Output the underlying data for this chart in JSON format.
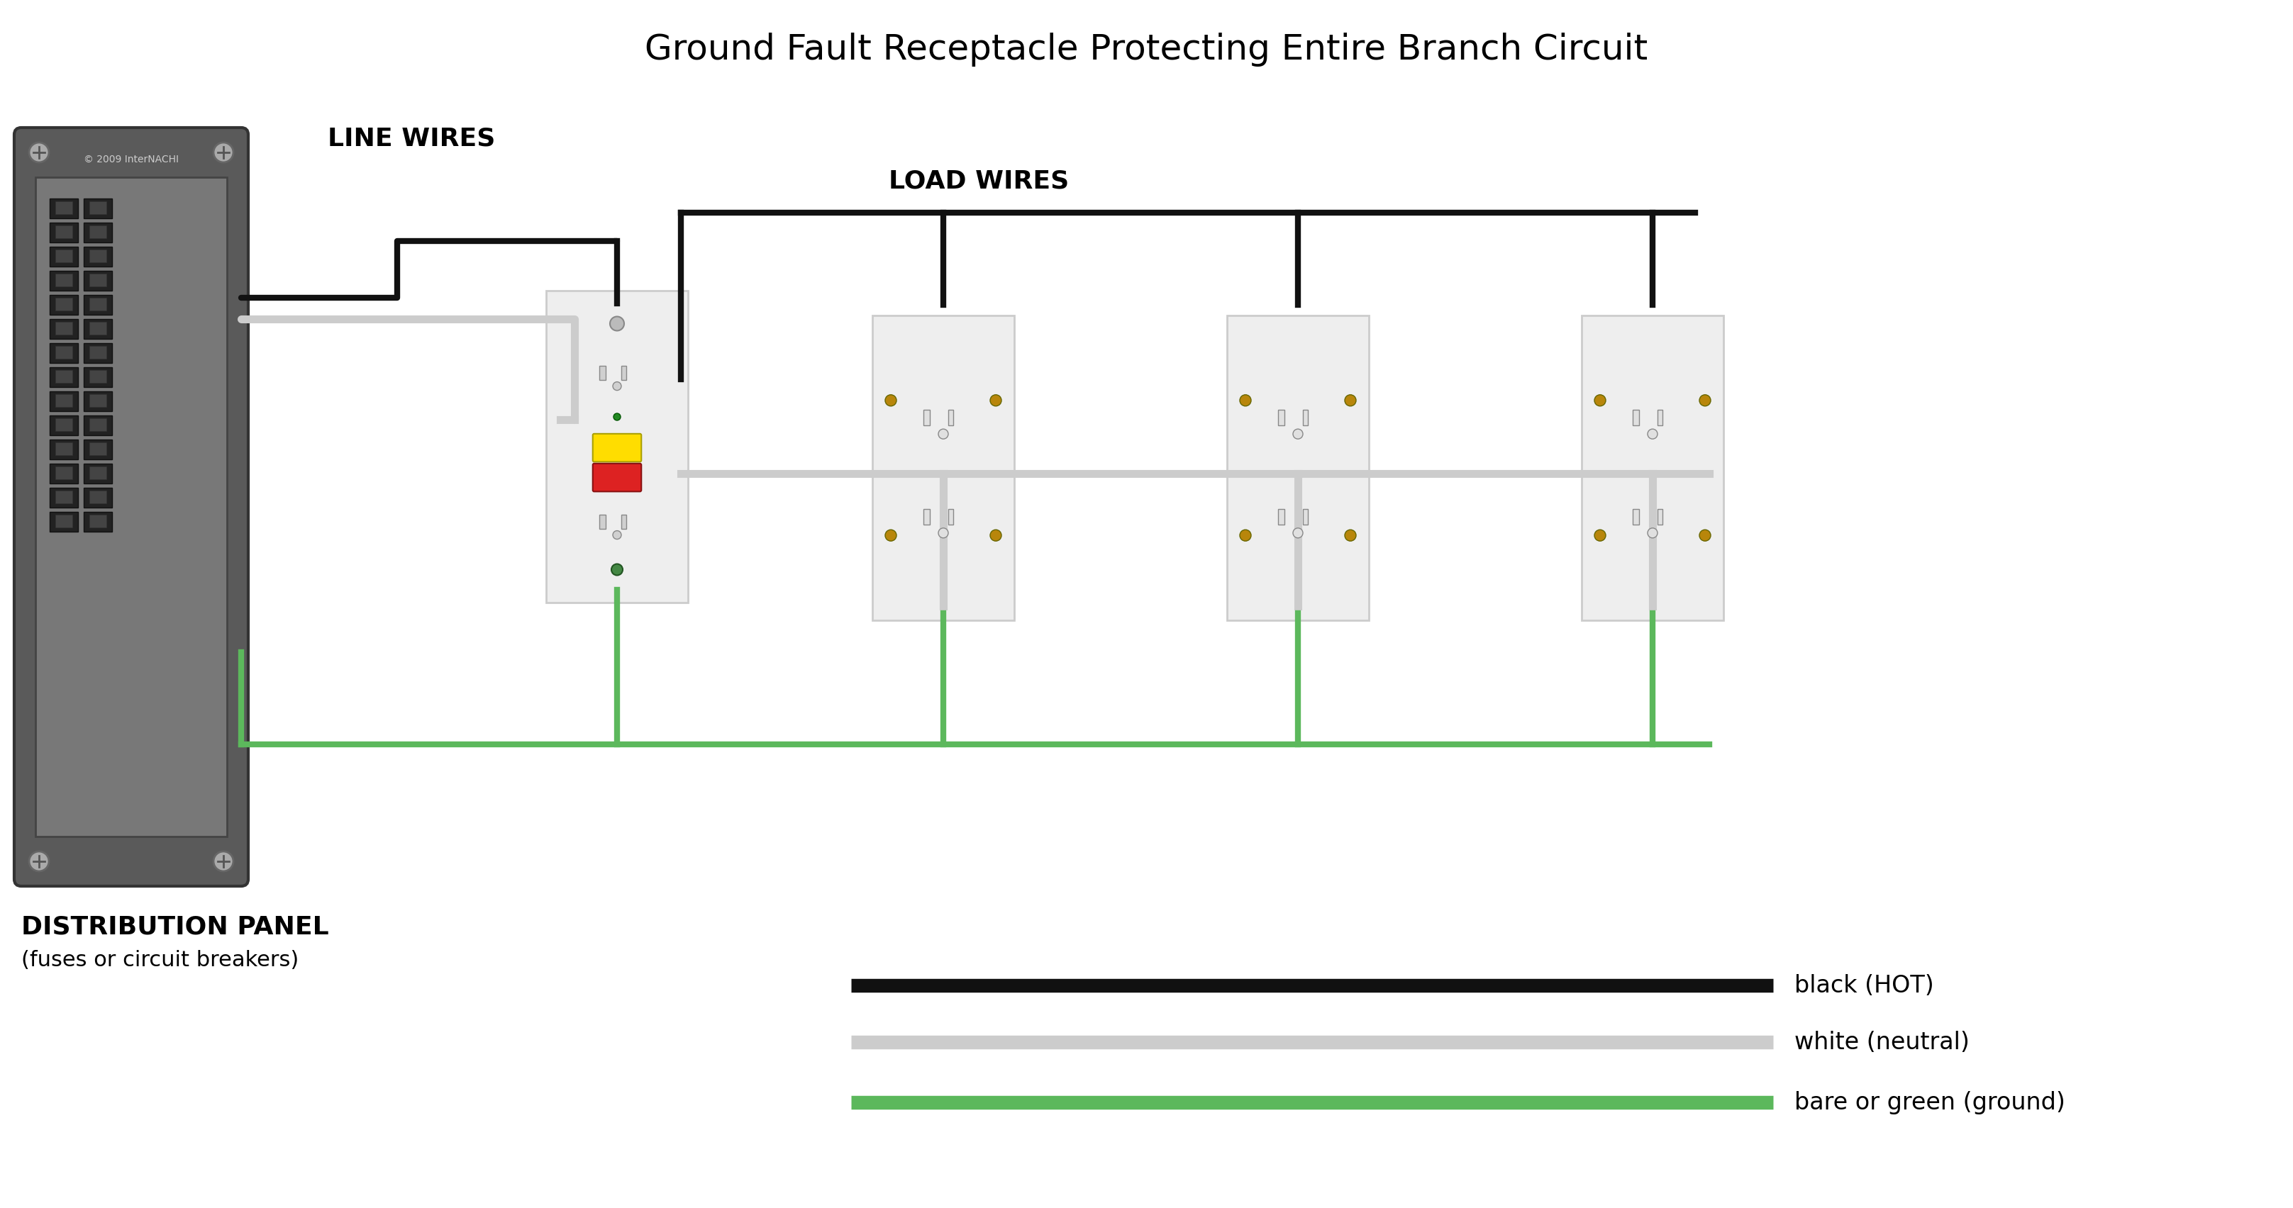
{
  "title": "Ground Fault Receptacle Protecting Entire Branch Circuit",
  "title_fontsize": 36,
  "bg_color": "#ffffff",
  "line_wires_label": "LINE WIRES",
  "load_wires_label": "LOAD WIRES",
  "dist_panel_label1": "DISTRIBUTION PANEL",
  "dist_panel_label2": "(fuses or circuit breakers)",
  "legend_black_label": "black (HOT)",
  "legend_white_label": "white (neutral)",
  "legend_green_label": "bare or green (ground)",
  "black_wire_color": "#111111",
  "white_wire_color": "#cccccc",
  "green_wire_color": "#5cb85c",
  "panel_color": "#606060",
  "panel_face_color": "#888888",
  "outlet_frame_color": "#d4d4d4",
  "gfci_white": "#f0f0f0",
  "outlet_gold": "#d4aa50",
  "wire_lw": 6,
  "legend_lw": 14
}
